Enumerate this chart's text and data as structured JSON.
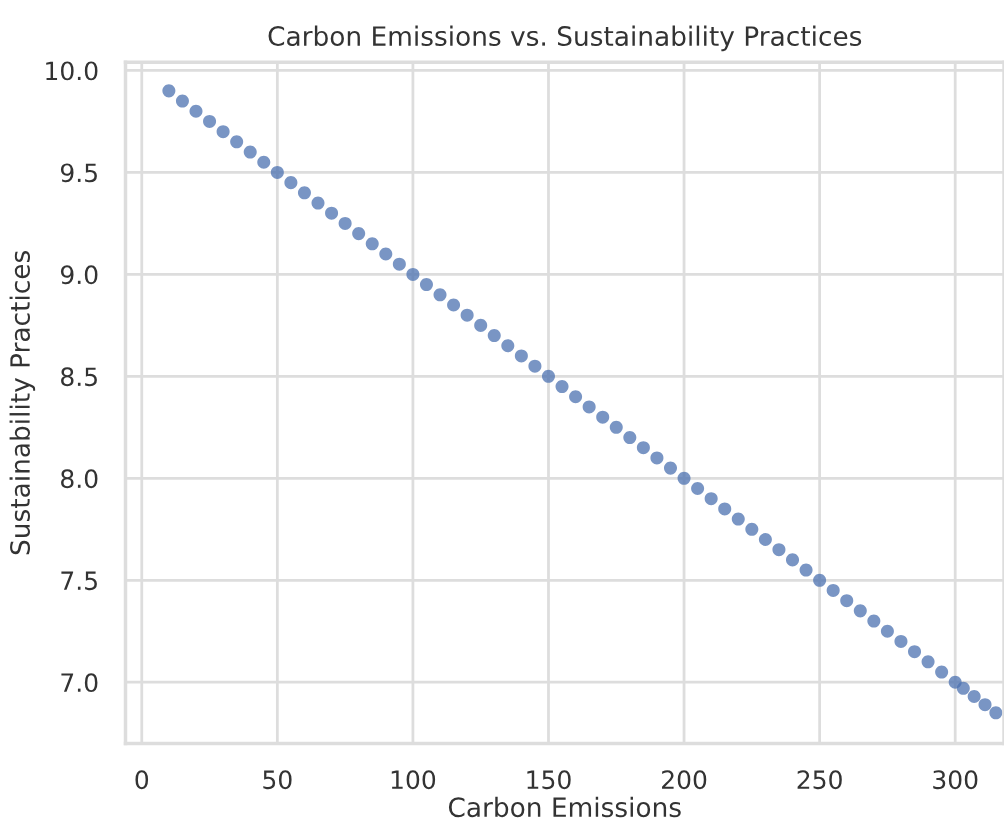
{
  "chart_data": {
    "type": "scatter",
    "title": "Carbon Emissions vs. Sustainability Practices",
    "xlabel": "Carbon Emissions",
    "ylabel": "Sustainability Practices",
    "x": [
      10,
      15,
      20,
      25,
      30,
      35,
      40,
      45,
      50,
      55,
      60,
      65,
      70,
      75,
      80,
      85,
      90,
      95,
      100,
      105,
      110,
      115,
      120,
      125,
      130,
      135,
      140,
      145,
      150,
      155,
      160,
      165,
      170,
      175,
      180,
      185,
      190,
      195,
      200,
      205,
      210,
      215,
      220,
      225,
      230,
      235,
      240,
      245,
      250,
      255,
      260,
      265,
      270,
      275,
      280,
      285,
      290,
      295,
      300,
      303,
      307,
      311,
      315
    ],
    "values": [
      9.9,
      9.85,
      9.8,
      9.75,
      9.7,
      9.65,
      9.6,
      9.55,
      9.5,
      9.45,
      9.4,
      9.35,
      9.3,
      9.25,
      9.2,
      9.15,
      9.1,
      9.05,
      9.0,
      8.95,
      8.9,
      8.85,
      8.8,
      8.75,
      8.7,
      8.65,
      8.6,
      8.55,
      8.5,
      8.45,
      8.4,
      8.35,
      8.3,
      8.25,
      8.2,
      8.15,
      8.1,
      8.05,
      8.0,
      7.95,
      7.9,
      7.85,
      7.8,
      7.75,
      7.7,
      7.65,
      7.6,
      7.55,
      7.5,
      7.45,
      7.4,
      7.35,
      7.3,
      7.25,
      7.2,
      7.15,
      7.1,
      7.05,
      7.0,
      6.97,
      6.93,
      6.89,
      6.85
    ],
    "color": "#4c72b0",
    "marker": "circle",
    "grid": true,
    "xlim": [
      -6,
      318
    ],
    "ylim": [
      6.7,
      10.04
    ],
    "xticks": [
      0,
      50,
      100,
      150,
      200,
      250,
      300
    ],
    "yticks": [
      {
        "value": 7.0,
        "label": "7.0"
      },
      {
        "value": 7.5,
        "label": "7.5"
      },
      {
        "value": 8.0,
        "label": "8.0"
      },
      {
        "value": 8.5,
        "label": "8.5"
      },
      {
        "value": 9.0,
        "label": "9.0"
      },
      {
        "value": 9.5,
        "label": "9.5"
      },
      {
        "value": 10.0,
        "label": "10.0"
      }
    ]
  }
}
